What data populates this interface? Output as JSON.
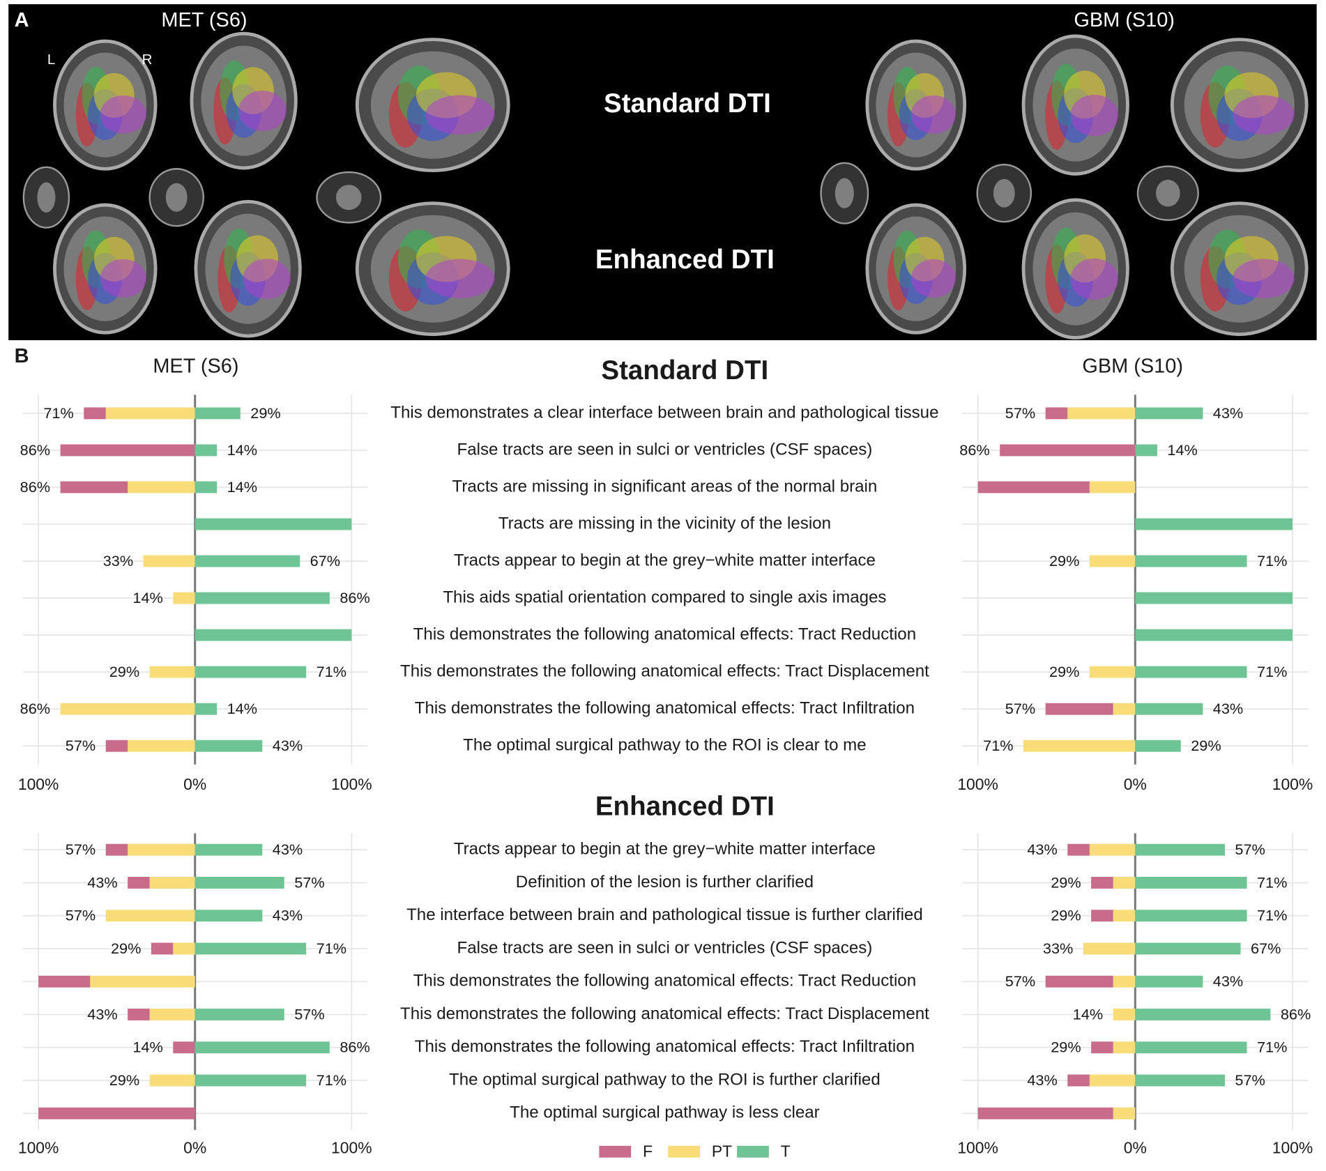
{
  "panel_a": {
    "label": "A",
    "cases": [
      "MET (S6)",
      "GBM (S10)"
    ],
    "orientation": [
      "L",
      "R"
    ],
    "rows": [
      "Standard DTI",
      "Enhanced DTI"
    ]
  },
  "panel_b": {
    "label": "B",
    "sections": [
      {
        "title": "Standard DTI",
        "categories": [
          "This demonstrates a clear interface between brain and pathological tissue",
          "False tracts are seen in sulci or ventricles (CSF spaces)",
          "Tracts are missing in significant areas of the normal brain",
          "Tracts are missing in the vicinity of the lesion",
          "Tracts appear to begin at the grey−white matter interface",
          "This aids spatial orientation compared to single axis images",
          "This demonstrates the following anatomical effects: Tract Reduction",
          "This demonstrates the following anatomical effects: Tract Displacement",
          "This demonstrates the following anatomical effects: Tract Infiltration",
          "The optimal surgical pathway to the ROI is clear to me"
        ]
      },
      {
        "title": "Enhanced DTI",
        "categories": [
          "Tracts appear to begin at the grey−white matter interface",
          "Definition of the lesion is further clarified",
          "The interface between brain and pathological tissue is further clarified",
          "False tracts are seen in sulci or ventricles (CSF spaces)",
          "This demonstrates the following anatomical effects: Tract Reduction",
          "This demonstrates the following anatomical effects: Tract Displacement",
          "This demonstrates the following anatomical effects: Tract Infiltration",
          "The optimal surgical pathway to the ROI is further clarified",
          "The optimal surgical pathway is less clear"
        ]
      }
    ],
    "legend": {
      "position": "bottom",
      "entries": [
        {
          "name": "F",
          "color": "#c96b8b"
        },
        {
          "name": "PT",
          "color": "#f7dc78"
        },
        {
          "name": "T",
          "color": "#6fc496"
        }
      ]
    }
  },
  "chart_data": [
    {
      "type": "diverging_bar",
      "title": "MET (S6)",
      "grid": true,
      "xlim": [
        -110,
        110
      ],
      "xticks": [
        {
          "value": -100,
          "label": "100%"
        },
        {
          "value": 0,
          "label": "0%"
        },
        {
          "value": 100,
          "label": "100%"
        }
      ],
      "series": [
        {
          "values": [
            14,
            86,
            43,
            0,
            0,
            0,
            0,
            0,
            0,
            14
          ]
        },
        {
          "values": [
            57,
            0,
            43,
            0,
            33,
            14,
            0,
            29,
            86,
            43
          ]
        },
        {
          "values": [
            29,
            14,
            14,
            100,
            67,
            86,
            100,
            71,
            14,
            43
          ],
          "value_labels": [
            "29%",
            "14%",
            "14%",
            null,
            "67%",
            "86%",
            null,
            "71%",
            "14%",
            "43%"
          ]
        }
      ],
      "left_labels": [
        "71%",
        "86%",
        "86%",
        null,
        "33%",
        "14%",
        null,
        "29%",
        "86%",
        "57%"
      ]
    },
    {
      "type": "diverging_bar",
      "title": "GBM (S10)",
      "grid": true,
      "xlim": [
        -110,
        110
      ],
      "xticks": [
        {
          "value": -100,
          "label": "100%"
        },
        {
          "value": 0,
          "label": "0%"
        },
        {
          "value": 100,
          "label": "100%"
        }
      ],
      "series": [
        {
          "values": [
            14,
            86,
            71,
            0,
            0,
            0,
            0,
            0,
            43,
            0
          ]
        },
        {
          "values": [
            43,
            0,
            29,
            0,
            29,
            0,
            0,
            29,
            14,
            71
          ]
        },
        {
          "values": [
            43,
            14,
            0,
            100,
            71,
            100,
            100,
            71,
            43,
            29
          ],
          "value_labels": [
            "43%",
            "14%",
            null,
            null,
            "71%",
            null,
            null,
            "71%",
            "43%",
            "29%"
          ]
        }
      ],
      "left_labels": [
        "57%",
        "86%",
        null,
        null,
        "29%",
        null,
        null,
        "29%",
        "57%",
        "71%"
      ]
    },
    {
      "type": "diverging_bar",
      "grid": true,
      "xlim": [
        -110,
        110
      ],
      "xticks": [
        {
          "value": -100,
          "label": "100%"
        },
        {
          "value": 0,
          "label": "0%"
        },
        {
          "value": 100,
          "label": "100%"
        }
      ],
      "series": [
        {
          "values": [
            14,
            14,
            0,
            14,
            33,
            14,
            14,
            0,
            100
          ]
        },
        {
          "values": [
            43,
            29,
            57,
            14,
            67,
            29,
            0,
            29,
            0
          ]
        },
        {
          "values": [
            43,
            57,
            43,
            71,
            0,
            57,
            86,
            71,
            0
          ],
          "value_labels": [
            "43%",
            "57%",
            "43%",
            "71%",
            null,
            "57%",
            "86%",
            "71%",
            null
          ]
        }
      ],
      "left_labels": [
        "57%",
        "43%",
        "57%",
        "29%",
        null,
        "43%",
        "14%",
        "29%",
        null
      ]
    },
    {
      "type": "diverging_bar",
      "grid": true,
      "xlim": [
        -110,
        110
      ],
      "xticks": [
        {
          "value": -100,
          "label": "100%"
        },
        {
          "value": 0,
          "label": "0%"
        },
        {
          "value": 100,
          "label": "100%"
        }
      ],
      "series": [
        {
          "values": [
            14,
            14,
            14,
            0,
            43,
            0,
            14,
            14,
            86
          ]
        },
        {
          "values": [
            29,
            14,
            14,
            33,
            14,
            14,
            14,
            29,
            14
          ]
        },
        {
          "values": [
            57,
            71,
            71,
            67,
            43,
            86,
            71,
            57,
            0
          ],
          "value_labels": [
            "57%",
            "71%",
            "71%",
            "67%",
            "43%",
            "86%",
            "71%",
            "57%",
            null
          ]
        }
      ],
      "left_labels": [
        "43%",
        "29%",
        "29%",
        "33%",
        "57%",
        "14%",
        "29%",
        "43%",
        null
      ]
    }
  ]
}
